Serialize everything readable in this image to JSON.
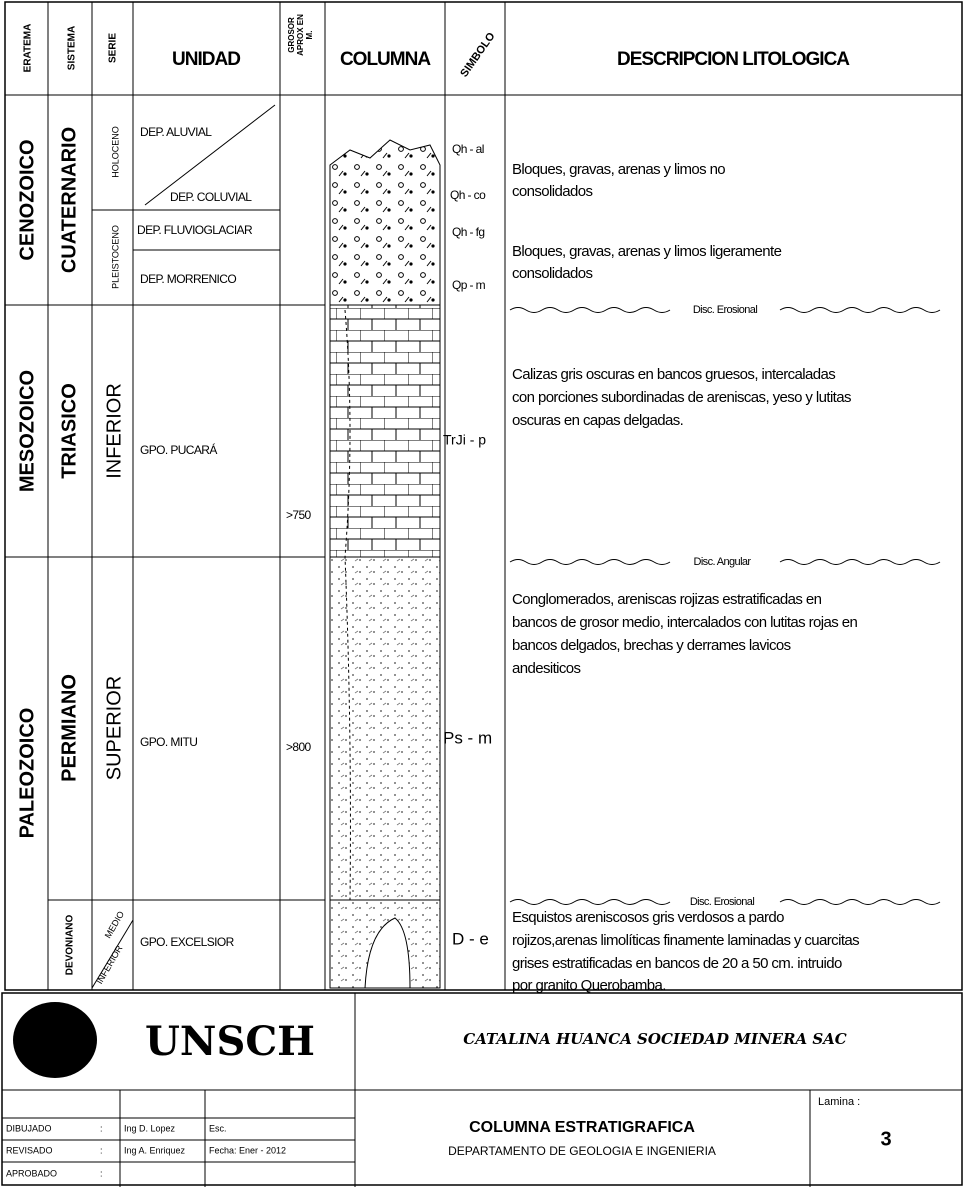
{
  "header": {
    "columns": [
      "ERATEMA",
      "SISTEMA",
      "SERIE",
      "UNIDAD",
      [
        "GROSOR",
        "APROX EN",
        "M."
      ],
      "COLUMNA",
      "SIMBOLO",
      "DESCRIPCION LITOLOGICA"
    ]
  },
  "eratemas": [
    "CENOZOICO",
    "MESOZOICO",
    "PALEOZOICO"
  ],
  "sistemas": [
    "CUATERNARIO",
    "TRIASICO",
    "PERMIANO",
    "DEVONIANO"
  ],
  "series": [
    "HOLOCENO",
    "PLEISTOCENO",
    "INFERIOR",
    "SUPERIOR",
    "MEDIO",
    "INFERIOR"
  ],
  "unidades": [
    "DEP. ALUVIAL",
    "DEP. COLUVIAL",
    "DEP. FLUVIOGLACIAR",
    "DEP. MORRENICO",
    "GPO. PUCARÁ",
    "GPO. MITU",
    "GPO. EXCELSIOR"
  ],
  "grosor": [
    ">750",
    ">800"
  ],
  "simbolos": [
    "Qh - al",
    "Qh - co",
    "Qh - fg",
    "Qp - m",
    "TrJi - p",
    "Ps - m",
    "D - e"
  ],
  "descripciones": [
    [
      "Bloques, gravas, arenas y limos no",
      "consolidados"
    ],
    [
      "Bloques, gravas, arenas y limos ligeramente",
      "consolidados"
    ],
    [
      "Calizas gris oscuras en bancos gruesos, intercaladas",
      "con porciones subordinadas de areniscas, yeso y lutitas",
      "oscuras en capas delgadas."
    ],
    [
      "Conglomerados, areniscas rojizas estratificadas en",
      "bancos de grosor medio, intercalados con lutitas rojas en",
      "bancos delgados, brechas y derrames lavicos",
      "andesiticos"
    ],
    [
      "Esquistos areniscosos gris verdosos a pardo",
      "rojizos,arenas limolíticas finamente laminadas y cuarcitas",
      "grises estratificadas en bancos de 20 a 50 cm. intruido",
      "por granito Querobamba."
    ]
  ],
  "discordancias": [
    "Disc. Erosional",
    "Disc. Angular",
    "Disc. Erosional"
  ],
  "footer": {
    "institucion": "UNSCH",
    "empresa": "CATALINA HUANCA  SOCIEDAD MINERA SAC",
    "titulo": "COLUMNA ESTRATIGRAFICA",
    "departamento": "DEPARTAMENTO DE GEOLOGIA E INGENIERIA",
    "lamina_label": "Lamina :",
    "lamina": "3",
    "firmas": [
      [
        "DIBUJADO",
        ":",
        "Ing D. Lopez",
        "Esc."
      ],
      [
        "REVISADO",
        ":",
        "Ing A. Enriquez",
        "Fecha: Ener - 2012"
      ],
      [
        "APROBADO",
        ":"
      ]
    ]
  }
}
